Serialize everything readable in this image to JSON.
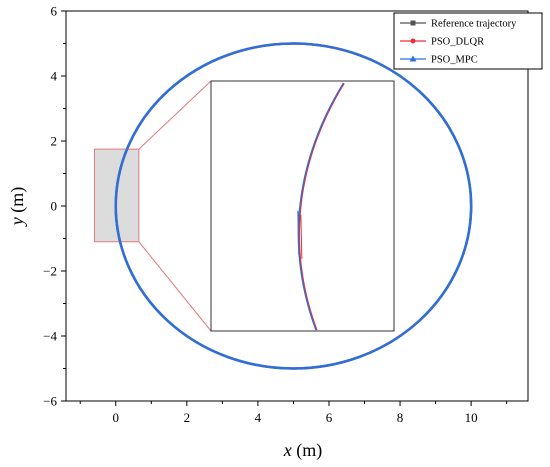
{
  "chart_data": {
    "type": "line",
    "xlabel_var": "x",
    "xlabel_unit": " (m)",
    "ylabel_var": "y",
    "ylabel_unit": " (m)",
    "xlim": [
      -1.4,
      11.6
    ],
    "ylim": [
      -6,
      6
    ],
    "x_ticks": [
      0,
      2,
      4,
      6,
      8,
      10
    ],
    "y_ticks": [
      -6,
      -4,
      -2,
      0,
      2,
      4,
      6
    ],
    "x_tick_labels": [
      "0",
      "2",
      "4",
      "6",
      "8",
      "10"
    ],
    "y_tick_labels": [
      "−6",
      "−4",
      "−2",
      "0",
      "2",
      "4",
      "6"
    ],
    "legend_position": "top-right",
    "series": [
      {
        "name": "Reference trajectory",
        "color": "#555555",
        "marker": "square",
        "shape": "ellipse",
        "center": [
          5,
          0
        ],
        "radius_x": 5,
        "radius_y": 5
      },
      {
        "name": "PSO_DLQR",
        "color": "#e8303a",
        "marker": "circle",
        "shape": "ellipse",
        "center": [
          5,
          0
        ],
        "radius_x": 5,
        "radius_y": 5
      },
      {
        "name": "PSO_MPC",
        "color": "#2f6fd6",
        "marker": "triangle",
        "shape": "ellipse",
        "center": [
          5,
          0
        ],
        "radius_x": 5,
        "radius_y": 5
      }
    ],
    "inset": {
      "source_region": {
        "x": [
          -0.6,
          0.65
        ],
        "y": [
          -1.1,
          1.75
        ]
      },
      "source_fill": "#dcdcdc",
      "connector_color": "#e27a7a",
      "box_color": "#333333"
    }
  }
}
